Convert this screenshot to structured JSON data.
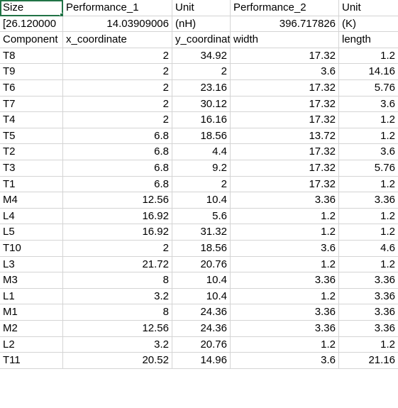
{
  "sheet": {
    "rows": [
      [
        {
          "v": "Size",
          "a": "txt"
        },
        {
          "v": "Performance_1",
          "a": "txt"
        },
        {
          "v": "Unit",
          "a": "txt"
        },
        {
          "v": "Performance_2",
          "a": "txt"
        },
        {
          "v": "Unit",
          "a": "txt"
        }
      ],
      [
        {
          "v": "[26.120000",
          "a": "txt"
        },
        {
          "v": "14.03909006",
          "a": "num"
        },
        {
          "v": "(nH)",
          "a": "txt"
        },
        {
          "v": "396.717826",
          "a": "num"
        },
        {
          "v": "(K)",
          "a": "txt"
        }
      ],
      [
        {
          "v": "Component",
          "a": "txt"
        },
        {
          "v": "x_coordinate",
          "a": "txt"
        },
        {
          "v": "y_coordinate",
          "a": "txt"
        },
        {
          "v": "width",
          "a": "txt"
        },
        {
          "v": "length",
          "a": "txt"
        }
      ],
      [
        {
          "v": "T8",
          "a": "txt"
        },
        {
          "v": "2",
          "a": "num"
        },
        {
          "v": "34.92",
          "a": "num"
        },
        {
          "v": "17.32",
          "a": "num"
        },
        {
          "v": "1.2",
          "a": "num"
        }
      ],
      [
        {
          "v": "T9",
          "a": "txt"
        },
        {
          "v": "2",
          "a": "num"
        },
        {
          "v": "2",
          "a": "num"
        },
        {
          "v": "3.6",
          "a": "num"
        },
        {
          "v": "14.16",
          "a": "num"
        }
      ],
      [
        {
          "v": "T6",
          "a": "txt"
        },
        {
          "v": "2",
          "a": "num"
        },
        {
          "v": "23.16",
          "a": "num"
        },
        {
          "v": "17.32",
          "a": "num"
        },
        {
          "v": "5.76",
          "a": "num"
        }
      ],
      [
        {
          "v": "T7",
          "a": "txt"
        },
        {
          "v": "2",
          "a": "num"
        },
        {
          "v": "30.12",
          "a": "num"
        },
        {
          "v": "17.32",
          "a": "num"
        },
        {
          "v": "3.6",
          "a": "num"
        }
      ],
      [
        {
          "v": "T4",
          "a": "txt"
        },
        {
          "v": "2",
          "a": "num"
        },
        {
          "v": "16.16",
          "a": "num"
        },
        {
          "v": "17.32",
          "a": "num"
        },
        {
          "v": "1.2",
          "a": "num"
        }
      ],
      [
        {
          "v": "T5",
          "a": "txt"
        },
        {
          "v": "6.8",
          "a": "num"
        },
        {
          "v": "18.56",
          "a": "num"
        },
        {
          "v": "13.72",
          "a": "num"
        },
        {
          "v": "1.2",
          "a": "num"
        }
      ],
      [
        {
          "v": "T2",
          "a": "txt"
        },
        {
          "v": "6.8",
          "a": "num"
        },
        {
          "v": "4.4",
          "a": "num"
        },
        {
          "v": "17.32",
          "a": "num"
        },
        {
          "v": "3.6",
          "a": "num"
        }
      ],
      [
        {
          "v": "T3",
          "a": "txt"
        },
        {
          "v": "6.8",
          "a": "num"
        },
        {
          "v": "9.2",
          "a": "num"
        },
        {
          "v": "17.32",
          "a": "num"
        },
        {
          "v": "5.76",
          "a": "num"
        }
      ],
      [
        {
          "v": "T1",
          "a": "txt"
        },
        {
          "v": "6.8",
          "a": "num"
        },
        {
          "v": "2",
          "a": "num"
        },
        {
          "v": "17.32",
          "a": "num"
        },
        {
          "v": "1.2",
          "a": "num"
        }
      ],
      [
        {
          "v": "M4",
          "a": "txt"
        },
        {
          "v": "12.56",
          "a": "num"
        },
        {
          "v": "10.4",
          "a": "num"
        },
        {
          "v": "3.36",
          "a": "num"
        },
        {
          "v": "3.36",
          "a": "num"
        }
      ],
      [
        {
          "v": "L4",
          "a": "txt"
        },
        {
          "v": "16.92",
          "a": "num"
        },
        {
          "v": "5.6",
          "a": "num"
        },
        {
          "v": "1.2",
          "a": "num"
        },
        {
          "v": "1.2",
          "a": "num"
        }
      ],
      [
        {
          "v": "L5",
          "a": "txt"
        },
        {
          "v": "16.92",
          "a": "num"
        },
        {
          "v": "31.32",
          "a": "num"
        },
        {
          "v": "1.2",
          "a": "num"
        },
        {
          "v": "1.2",
          "a": "num"
        }
      ],
      [
        {
          "v": "T10",
          "a": "txt"
        },
        {
          "v": "2",
          "a": "num"
        },
        {
          "v": "18.56",
          "a": "num"
        },
        {
          "v": "3.6",
          "a": "num"
        },
        {
          "v": "4.6",
          "a": "num"
        }
      ],
      [
        {
          "v": "L3",
          "a": "txt"
        },
        {
          "v": "21.72",
          "a": "num"
        },
        {
          "v": "20.76",
          "a": "num"
        },
        {
          "v": "1.2",
          "a": "num"
        },
        {
          "v": "1.2",
          "a": "num"
        }
      ],
      [
        {
          "v": "M3",
          "a": "txt"
        },
        {
          "v": "8",
          "a": "num"
        },
        {
          "v": "10.4",
          "a": "num"
        },
        {
          "v": "3.36",
          "a": "num"
        },
        {
          "v": "3.36",
          "a": "num"
        }
      ],
      [
        {
          "v": "L1",
          "a": "txt"
        },
        {
          "v": "3.2",
          "a": "num"
        },
        {
          "v": "10.4",
          "a": "num"
        },
        {
          "v": "1.2",
          "a": "num"
        },
        {
          "v": "3.36",
          "a": "num"
        }
      ],
      [
        {
          "v": "M1",
          "a": "txt"
        },
        {
          "v": "8",
          "a": "num"
        },
        {
          "v": "24.36",
          "a": "num"
        },
        {
          "v": "3.36",
          "a": "num"
        },
        {
          "v": "3.36",
          "a": "num"
        }
      ],
      [
        {
          "v": "M2",
          "a": "txt"
        },
        {
          "v": "12.56",
          "a": "num"
        },
        {
          "v": "24.36",
          "a": "num"
        },
        {
          "v": "3.36",
          "a": "num"
        },
        {
          "v": "3.36",
          "a": "num"
        }
      ],
      [
        {
          "v": "L2",
          "a": "txt"
        },
        {
          "v": "3.2",
          "a": "num"
        },
        {
          "v": "20.76",
          "a": "num"
        },
        {
          "v": "1.2",
          "a": "num"
        },
        {
          "v": "1.2",
          "a": "num"
        }
      ],
      [
        {
          "v": "T11",
          "a": "txt"
        },
        {
          "v": "20.52",
          "a": "num"
        },
        {
          "v": "14.96",
          "a": "num"
        },
        {
          "v": "3.6",
          "a": "num"
        },
        {
          "v": "21.16",
          "a": "num"
        }
      ]
    ]
  }
}
